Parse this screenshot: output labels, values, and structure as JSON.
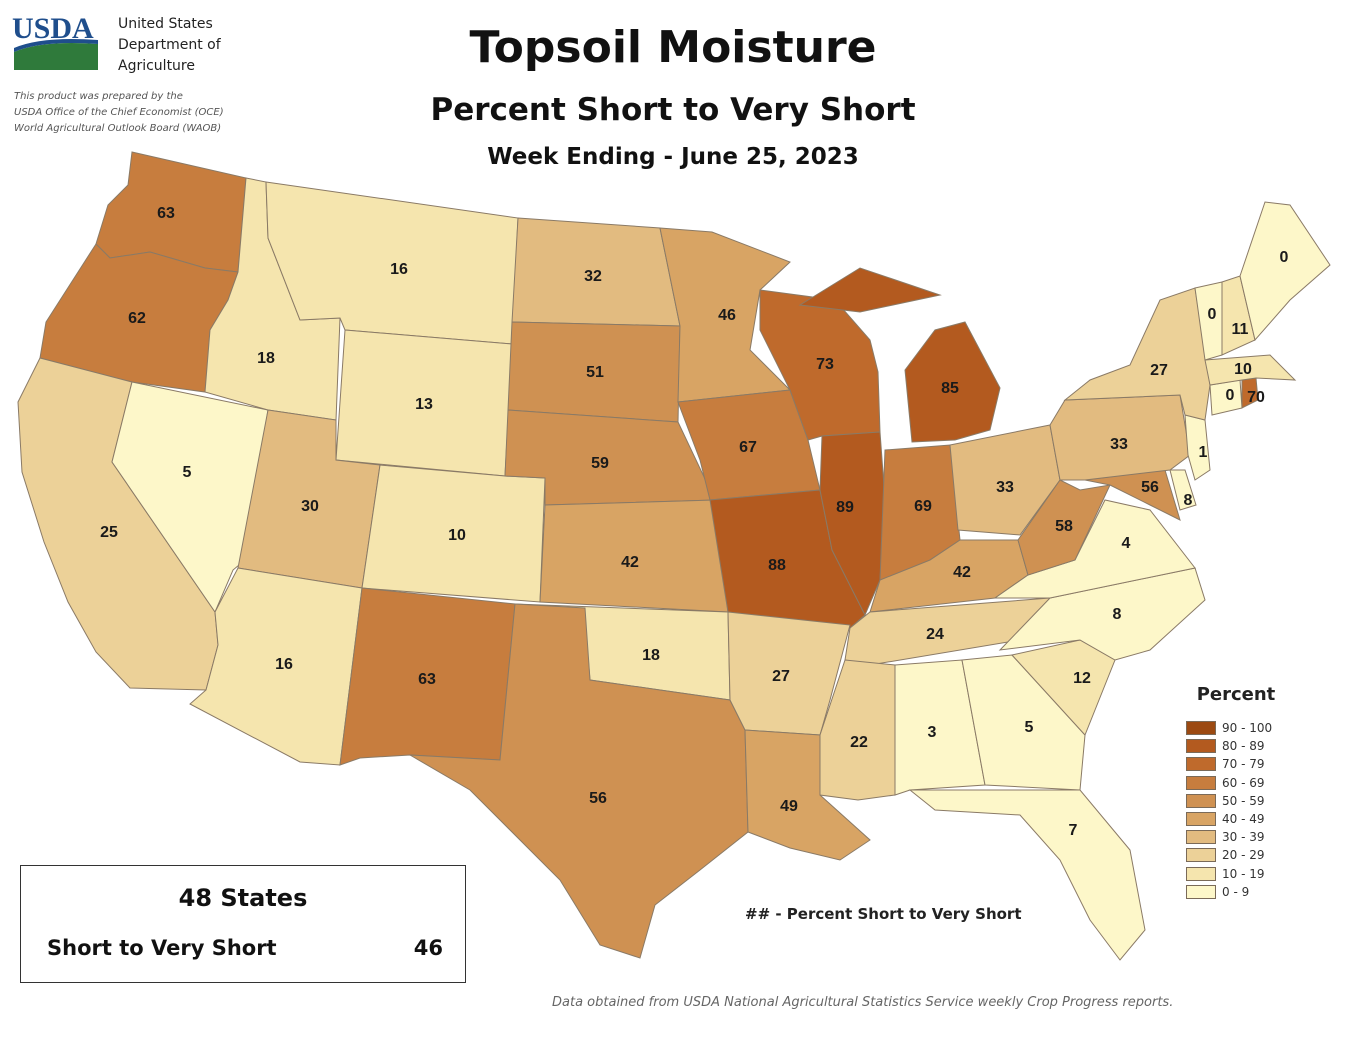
{
  "header": {
    "agency_abbrev": "USDA",
    "agency_name_lines": [
      "United States",
      "Department of",
      "Agriculture"
    ],
    "prepared_lines": [
      "This product was prepared by the",
      "USDA Office of the Chief Economist (OCE)",
      "World Agricultural Outlook Board (WAOB)"
    ],
    "title": "Topsoil Moisture",
    "subtitle": "Percent Short to Very Short",
    "week": "Week Ending - June 25, 2023"
  },
  "legend": {
    "title": "Percent",
    "classes": [
      {
        "label": "90 - 100",
        "color": "#9c4a12"
      },
      {
        "label": "80 - 89",
        "color": "#b35a1f"
      },
      {
        "label": "70 - 79",
        "color": "#bf6a2c"
      },
      {
        "label": "60 - 69",
        "color": "#c77d3e"
      },
      {
        "label": "50 - 59",
        "color": "#cf9152"
      },
      {
        "label": "40 - 49",
        "color": "#d8a464"
      },
      {
        "label": "30 - 39",
        "color": "#e2bb80"
      },
      {
        "label": "20 - 29",
        "color": "#ecd198"
      },
      {
        "label": "10 - 19",
        "color": "#f5e5ae"
      },
      {
        "label": "0 - 9",
        "color": "#fdf7c9"
      }
    ]
  },
  "states": [
    {
      "id": "WA",
      "value": 63
    },
    {
      "id": "OR",
      "value": 62
    },
    {
      "id": "CA",
      "value": 25
    },
    {
      "id": "NV",
      "value": 5
    },
    {
      "id": "ID",
      "value": 18
    },
    {
      "id": "MT",
      "value": 16
    },
    {
      "id": "WY",
      "value": 13
    },
    {
      "id": "UT",
      "value": 30
    },
    {
      "id": "AZ",
      "value": 16
    },
    {
      "id": "CO",
      "value": 10
    },
    {
      "id": "NM",
      "value": 63
    },
    {
      "id": "ND",
      "value": 32
    },
    {
      "id": "SD",
      "value": 51
    },
    {
      "id": "NE",
      "value": 59
    },
    {
      "id": "KS",
      "value": 42
    },
    {
      "id": "OK",
      "value": 18
    },
    {
      "id": "TX",
      "value": 56
    },
    {
      "id": "MN",
      "value": 46
    },
    {
      "id": "IA",
      "value": 67
    },
    {
      "id": "MO",
      "value": 88
    },
    {
      "id": "AR",
      "value": 27
    },
    {
      "id": "LA",
      "value": 49
    },
    {
      "id": "WI",
      "value": 73
    },
    {
      "id": "IL",
      "value": 89
    },
    {
      "id": "MI",
      "value": 85
    },
    {
      "id": "IN",
      "value": 69
    },
    {
      "id": "OH",
      "value": 33
    },
    {
      "id": "KY",
      "value": 42
    },
    {
      "id": "TN",
      "value": 24
    },
    {
      "id": "MS",
      "value": 22
    },
    {
      "id": "AL",
      "value": 3
    },
    {
      "id": "GA",
      "value": 5
    },
    {
      "id": "FL",
      "value": 7
    },
    {
      "id": "SC",
      "value": 12
    },
    {
      "id": "NC",
      "value": 8
    },
    {
      "id": "VA",
      "value": 4
    },
    {
      "id": "WV",
      "value": 58
    },
    {
      "id": "MD",
      "value": 56
    },
    {
      "id": "DE",
      "value": 8
    },
    {
      "id": "PA",
      "value": 33
    },
    {
      "id": "NJ",
      "value": 1
    },
    {
      "id": "NY",
      "value": 27
    },
    {
      "id": "CT",
      "value": 0
    },
    {
      "id": "RI",
      "value": 70
    },
    {
      "id": "MA",
      "value": 10
    },
    {
      "id": "VT",
      "value": 0
    },
    {
      "id": "NH",
      "value": 11
    },
    {
      "id": "ME",
      "value": 0
    }
  ],
  "summary": {
    "title": "48 States",
    "label": "Short to Very Short",
    "value": "46"
  },
  "note": "## - Percent Short to Very Short",
  "source": "Data obtained from USDA National Agricultural Statistics Service weekly Crop Progress reports."
}
